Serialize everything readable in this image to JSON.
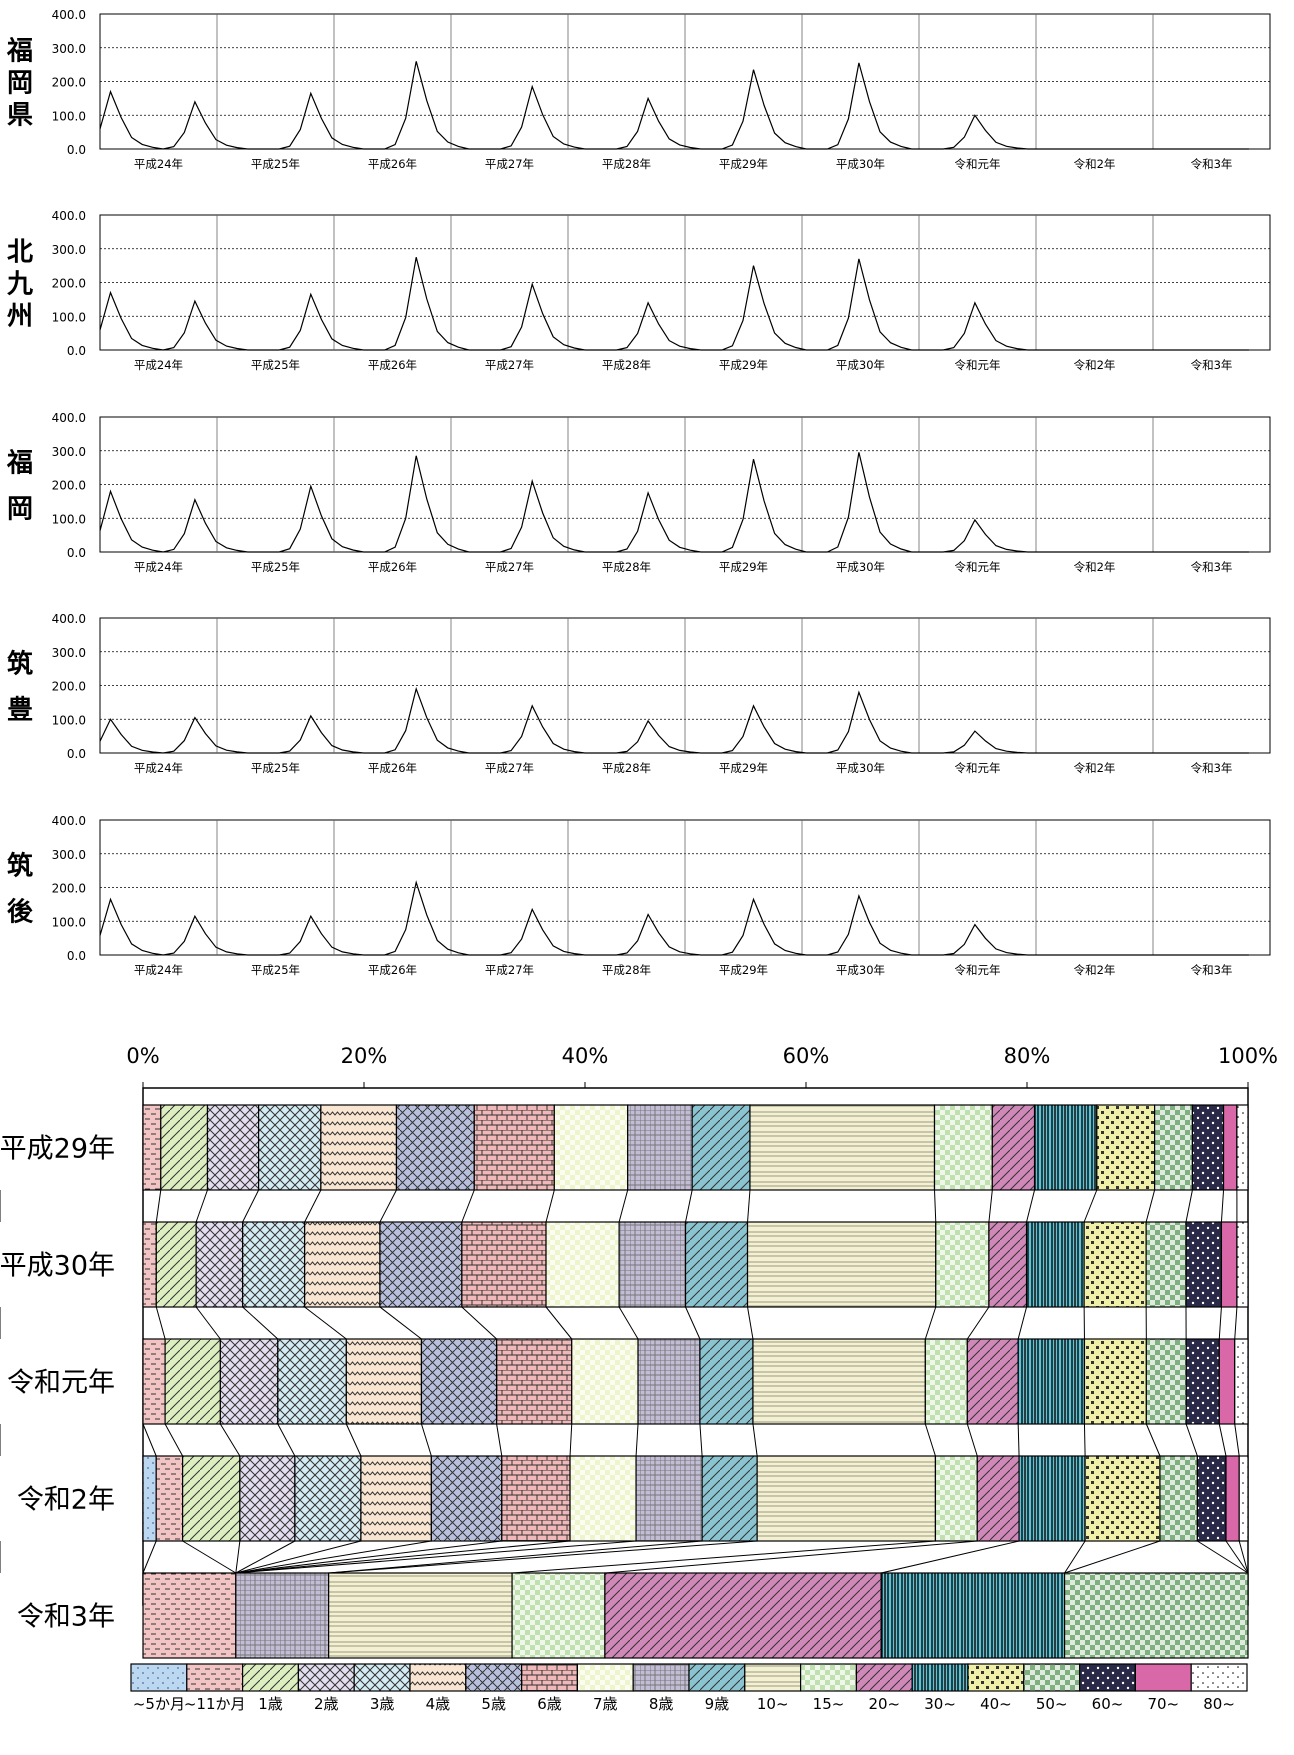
{
  "line_panels": [
    {
      "region": "福岡県",
      "ylim": [
        0,
        400
      ],
      "yticks": [
        "400.0",
        "300.0",
        "200.0",
        "100.0",
        "0.0"
      ]
    },
    {
      "region": "北九州",
      "ylim": [
        0,
        400
      ],
      "yticks": [
        "400.0",
        "300.0",
        "200.0",
        "100.0",
        "0.0"
      ]
    },
    {
      "region": "福岡",
      "ylim": [
        0,
        400
      ],
      "yticks": [
        "400.0",
        "300.0",
        "200.0",
        "100.0",
        "0.0"
      ]
    },
    {
      "region": "筑豊",
      "ylim": [
        0,
        400
      ],
      "yticks": [
        "400.0",
        "300.0",
        "200.0",
        "100.0",
        "0.0"
      ]
    },
    {
      "region": "筑後",
      "ylim": [
        0,
        400
      ],
      "yticks": [
        "400.0",
        "300.0",
        "200.0",
        "100.0",
        "0.0"
      ]
    }
  ],
  "year_labels": [
    "平成24年",
    "平成25年",
    "平成26年",
    "平成27年",
    "平成28年",
    "平成29年",
    "平成30年",
    "令和元年",
    "令和2年",
    "令和3年"
  ],
  "bar_axis_ticks": [
    "0%",
    "20%",
    "40%",
    "60%",
    "80%",
    "100%"
  ],
  "chart_data": [
    {
      "type": "line",
      "title": "",
      "region": "福岡県",
      "x_years": [
        "平成24年",
        "平成25年",
        "平成26年",
        "平成27年",
        "平成28年",
        "平成29年",
        "平成30年",
        "令和元年",
        "令和2年",
        "令和3年"
      ],
      "ylim": [
        0,
        400
      ],
      "peaks": [
        {
          "period": 1,
          "value": 170
        },
        {
          "period": 9,
          "value": 140
        },
        {
          "period": 20,
          "value": 165
        },
        {
          "period": 30,
          "value": 260
        },
        {
          "period": 41,
          "value": 185
        },
        {
          "period": 52,
          "value": 150
        },
        {
          "period": 62,
          "value": 235
        },
        {
          "period": 72,
          "value": 255
        },
        {
          "period": 83,
          "value": 100
        }
      ]
    },
    {
      "type": "line",
      "region": "北九州",
      "ylim": [
        0,
        400
      ],
      "peaks": [
        {
          "period": 1,
          "value": 170
        },
        {
          "period": 9,
          "value": 145
        },
        {
          "period": 20,
          "value": 165
        },
        {
          "period": 30,
          "value": 275
        },
        {
          "period": 41,
          "value": 195
        },
        {
          "period": 52,
          "value": 140
        },
        {
          "period": 62,
          "value": 250
        },
        {
          "period": 72,
          "value": 270
        },
        {
          "period": 83,
          "value": 140
        }
      ]
    },
    {
      "type": "line",
      "region": "福岡",
      "ylim": [
        0,
        400
      ],
      "peaks": [
        {
          "period": 1,
          "value": 180
        },
        {
          "period": 9,
          "value": 155
        },
        {
          "period": 20,
          "value": 195
        },
        {
          "period": 30,
          "value": 285
        },
        {
          "period": 41,
          "value": 210
        },
        {
          "period": 52,
          "value": 175
        },
        {
          "period": 62,
          "value": 275
        },
        {
          "period": 72,
          "value": 295
        },
        {
          "period": 83,
          "value": 95
        }
      ]
    },
    {
      "type": "line",
      "region": "筑豊",
      "ylim": [
        0,
        400
      ],
      "peaks": [
        {
          "period": 1,
          "value": 100
        },
        {
          "period": 9,
          "value": 105
        },
        {
          "period": 20,
          "value": 110
        },
        {
          "period": 30,
          "value": 190
        },
        {
          "period": 41,
          "value": 140
        },
        {
          "period": 52,
          "value": 95
        },
        {
          "period": 62,
          "value": 140
        },
        {
          "period": 72,
          "value": 180
        },
        {
          "period": 83,
          "value": 65
        }
      ]
    },
    {
      "type": "line",
      "region": "筑後",
      "ylim": [
        0,
        400
      ],
      "peaks": [
        {
          "period": 1,
          "value": 165
        },
        {
          "period": 9,
          "value": 115
        },
        {
          "period": 20,
          "value": 115
        },
        {
          "period": 30,
          "value": 215
        },
        {
          "period": 41,
          "value": 135
        },
        {
          "period": 52,
          "value": 120
        },
        {
          "period": 62,
          "value": 165
        },
        {
          "period": 72,
          "value": 175
        },
        {
          "period": 83,
          "value": 90
        }
      ]
    },
    {
      "type": "bar",
      "orientation": "horizontal-stacked-100",
      "categories": [
        "平成29年",
        "平成30年",
        "令和元年",
        "令和2年",
        "令和3年"
      ],
      "xlim": [
        0,
        100
      ],
      "legend_placement": "bottom",
      "series": [
        {
          "name": "~5か月",
          "color": "#bcd8f0",
          "values": [
            0.0,
            0.0,
            0.0,
            0.6,
            0.0
          ]
        },
        {
          "name": "~11か月",
          "color": "#f2c4c4",
          "values": [
            0.8,
            0.6,
            1.0,
            1.2,
            4.2
          ]
        },
        {
          "name": "1歳",
          "color": "#ddeec0",
          "values": [
            2.1,
            1.8,
            2.5,
            2.6,
            0.0
          ]
        },
        {
          "name": "2歳",
          "color": "#e4def0",
          "values": [
            2.3,
            2.1,
            2.6,
            2.5,
            0.0
          ]
        },
        {
          "name": "3歳",
          "color": "#d4ecf4",
          "values": [
            2.8,
            2.8,
            3.1,
            3.0,
            0.0
          ]
        },
        {
          "name": "4歳",
          "color": "#f9e6d2",
          "values": [
            3.4,
            3.4,
            3.4,
            3.2,
            0.0
          ]
        },
        {
          "name": "5歳",
          "color": "#b8c0de",
          "values": [
            3.5,
            3.7,
            3.4,
            3.2,
            0.0
          ]
        },
        {
          "name": "6歳",
          "color": "#f0b8b8",
          "values": [
            3.6,
            3.8,
            3.4,
            3.1,
            0.0
          ]
        },
        {
          "name": "7歳",
          "color": "#eef4cc",
          "values": [
            3.3,
            3.3,
            3.0,
            3.0,
            0.0
          ]
        },
        {
          "name": "8歳",
          "color": "#c2bcd4",
          "values": [
            2.9,
            3.0,
            2.8,
            3.0,
            4.2
          ]
        },
        {
          "name": "9歳",
          "color": "#8ac4d0",
          "values": [
            2.6,
            2.8,
            2.4,
            2.5,
            0.0
          ]
        },
        {
          "name": "10~",
          "color": "#f4f0d4",
          "values": [
            8.3,
            8.5,
            7.8,
            8.1,
            8.3
          ]
        },
        {
          "name": "15~",
          "color": "#c0e0b0",
          "values": [
            2.6,
            2.4,
            1.9,
            1.9,
            4.2
          ]
        },
        {
          "name": "20~",
          "color": "#d088b8",
          "values": [
            1.9,
            1.7,
            2.3,
            1.9,
            12.5
          ]
        },
        {
          "name": "30~",
          "color": "#5cc4d8",
          "values": [
            2.8,
            2.6,
            3.0,
            3.0,
            8.3
          ]
        },
        {
          "name": "40~",
          "color": "#f0f0a8",
          "values": [
            2.6,
            2.8,
            2.8,
            3.4,
            0.0
          ]
        },
        {
          "name": "50~",
          "color": "#80b080",
          "values": [
            1.7,
            1.8,
            1.8,
            1.7,
            8.3
          ]
        },
        {
          "name": "60~",
          "color": "#2a2a48",
          "values": [
            1.4,
            1.6,
            1.5,
            1.3,
            0.0
          ]
        },
        {
          "name": "70~",
          "color": "#d868a8",
          "values": [
            0.6,
            0.7,
            0.7,
            0.6,
            0.0
          ]
        },
        {
          "name": "80~",
          "color": "#ffffff",
          "values": [
            0.5,
            0.5,
            0.6,
            0.4,
            0.0
          ]
        }
      ]
    }
  ]
}
